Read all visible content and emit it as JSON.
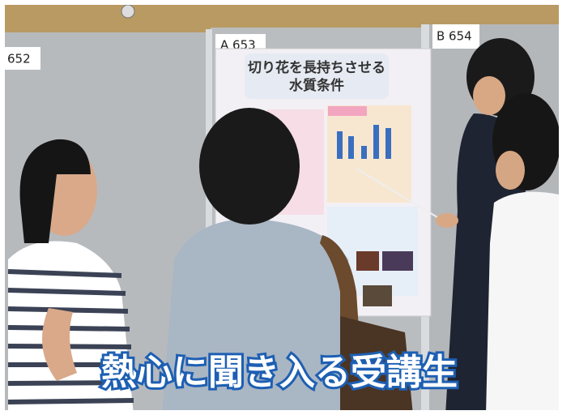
{
  "booths": {
    "left": "652",
    "center": "A 653",
    "right": "B 654"
  },
  "poster": {
    "title_line1": "切り花を長持ちさせる",
    "title_line2": "水質条件"
  },
  "caption": "熱心に聞き入る受講生"
}
